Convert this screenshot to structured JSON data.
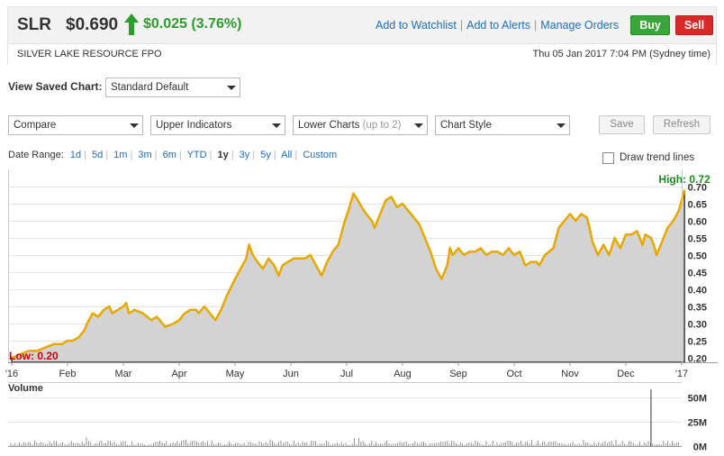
{
  "quote": {
    "symbol": "SLR",
    "price": "$0.690",
    "change": "$0.025 (3.76%)",
    "company": "SILVER LAKE RESOURCE FPO",
    "datetime": "Thu 05 Jan 2017 7:04 PM (Sydney time)"
  },
  "actions": {
    "watchlist": "Add to Watchlist",
    "alerts": "Add to Alerts",
    "orders": "Manage Orders",
    "buy": "Buy",
    "sell": "Sell"
  },
  "toolbar": {
    "saved_label": "View Saved Chart:",
    "saved_value": "Standard Default",
    "compare": "Compare",
    "upper": "Upper Indicators",
    "lower": "Lower Charts",
    "lower_note": "(up to 2)",
    "style": "Chart Style",
    "save": "Save",
    "refresh": "Refresh"
  },
  "date_range": {
    "label": "Date Range:",
    "options": [
      "1d",
      "5d",
      "1m",
      "3m",
      "6m",
      "YTD",
      "1y",
      "3y",
      "5y",
      "All",
      "Custom"
    ],
    "active": "1y"
  },
  "trend_label": "Draw trend lines",
  "volume_label": "Volume",
  "colors": {
    "price_line": "#e8a800",
    "area_fill": "#d3d3d3",
    "up_green": "#2a9d2a",
    "high_label": "#1d8a1d",
    "low_label": "#cc0000",
    "link_blue": "#1f6fb5"
  },
  "chart_data": {
    "type": "area",
    "high_label": "High: 0.72",
    "low_label": "Low: 0.20",
    "y_ticks": [
      "0.70",
      "0.65",
      "0.60",
      "0.55",
      "0.50",
      "0.45",
      "0.40",
      "0.35",
      "0.30",
      "0.25",
      "0.20"
    ],
    "ylim": [
      0.2,
      0.7
    ],
    "x_ticks": [
      "'16",
      "Feb",
      "Mar",
      "Apr",
      "May",
      "Jun",
      "Jul",
      "Aug",
      "Sep",
      "Oct",
      "Nov",
      "Dec",
      "'17"
    ],
    "x_tick_months": [
      0,
      1,
      2,
      3,
      4,
      5,
      6,
      7,
      8,
      9,
      10,
      11,
      12
    ],
    "series": [
      {
        "x": [
          0.0,
          0.15,
          0.3,
          0.45,
          0.6,
          0.75,
          0.9,
          1.0,
          1.1,
          1.2,
          1.3,
          1.35,
          1.45,
          1.55,
          1.65,
          1.75,
          1.8,
          1.9,
          2.0,
          2.05,
          2.1,
          2.2,
          2.35,
          2.5,
          2.6,
          2.75,
          2.9,
          3.0,
          3.1,
          3.2,
          3.3,
          3.35,
          3.45,
          3.55,
          3.65,
          3.75,
          3.85,
          4.0,
          4.1,
          4.2,
          4.25,
          4.32,
          4.4,
          4.5,
          4.6,
          4.7,
          4.78,
          4.85,
          4.95,
          5.05,
          5.15,
          5.25,
          5.35,
          5.45,
          5.55,
          5.65,
          5.75,
          5.85,
          5.95,
          6.05,
          6.12,
          6.2,
          6.27,
          6.35,
          6.45,
          6.5,
          6.6,
          6.7,
          6.8,
          6.9,
          7.0,
          7.1,
          7.2,
          7.3,
          7.4,
          7.5,
          7.6,
          7.7,
          7.8,
          7.85,
          7.9,
          8.0,
          8.1,
          8.2,
          8.3,
          8.4,
          8.5,
          8.6,
          8.7,
          8.8,
          8.9,
          9.0,
          9.1,
          9.2,
          9.3,
          9.4,
          9.45,
          9.55,
          9.7,
          9.8,
          9.9,
          10.0,
          10.1,
          10.2,
          10.3,
          10.35,
          10.4,
          10.5,
          10.6,
          10.7,
          10.8,
          10.9,
          11.0,
          11.1,
          11.2,
          11.3,
          11.35,
          11.45,
          11.5,
          11.55,
          11.65,
          11.75,
          11.85,
          11.95,
          12.05
        ],
        "y": [
          0.2,
          0.21,
          0.22,
          0.22,
          0.23,
          0.24,
          0.24,
          0.25,
          0.25,
          0.26,
          0.28,
          0.3,
          0.33,
          0.32,
          0.34,
          0.35,
          0.33,
          0.34,
          0.35,
          0.36,
          0.33,
          0.34,
          0.33,
          0.31,
          0.32,
          0.29,
          0.3,
          0.31,
          0.33,
          0.34,
          0.34,
          0.33,
          0.35,
          0.33,
          0.31,
          0.34,
          0.38,
          0.43,
          0.46,
          0.49,
          0.53,
          0.5,
          0.48,
          0.46,
          0.49,
          0.47,
          0.44,
          0.47,
          0.48,
          0.49,
          0.49,
          0.49,
          0.5,
          0.47,
          0.44,
          0.48,
          0.51,
          0.53,
          0.59,
          0.64,
          0.68,
          0.66,
          0.64,
          0.62,
          0.6,
          0.58,
          0.62,
          0.66,
          0.67,
          0.64,
          0.65,
          0.63,
          0.61,
          0.59,
          0.55,
          0.51,
          0.46,
          0.43,
          0.47,
          0.52,
          0.5,
          0.52,
          0.5,
          0.51,
          0.51,
          0.52,
          0.5,
          0.51,
          0.51,
          0.5,
          0.52,
          0.5,
          0.51,
          0.47,
          0.48,
          0.48,
          0.47,
          0.5,
          0.52,
          0.58,
          0.6,
          0.62,
          0.6,
          0.62,
          0.61,
          0.58,
          0.54,
          0.5,
          0.53,
          0.5,
          0.55,
          0.52,
          0.56,
          0.56,
          0.57,
          0.53,
          0.56,
          0.55,
          0.53,
          0.5,
          0.54,
          0.58,
          0.6,
          0.63,
          0.69
        ]
      }
    ],
    "volume": {
      "label": "Volume",
      "y_ticks": [
        "50M",
        "25M",
        "0M"
      ],
      "ylim": [
        0,
        60
      ],
      "spike": {
        "x": 11.45,
        "value": 58
      },
      "typical_max": 4
    }
  }
}
